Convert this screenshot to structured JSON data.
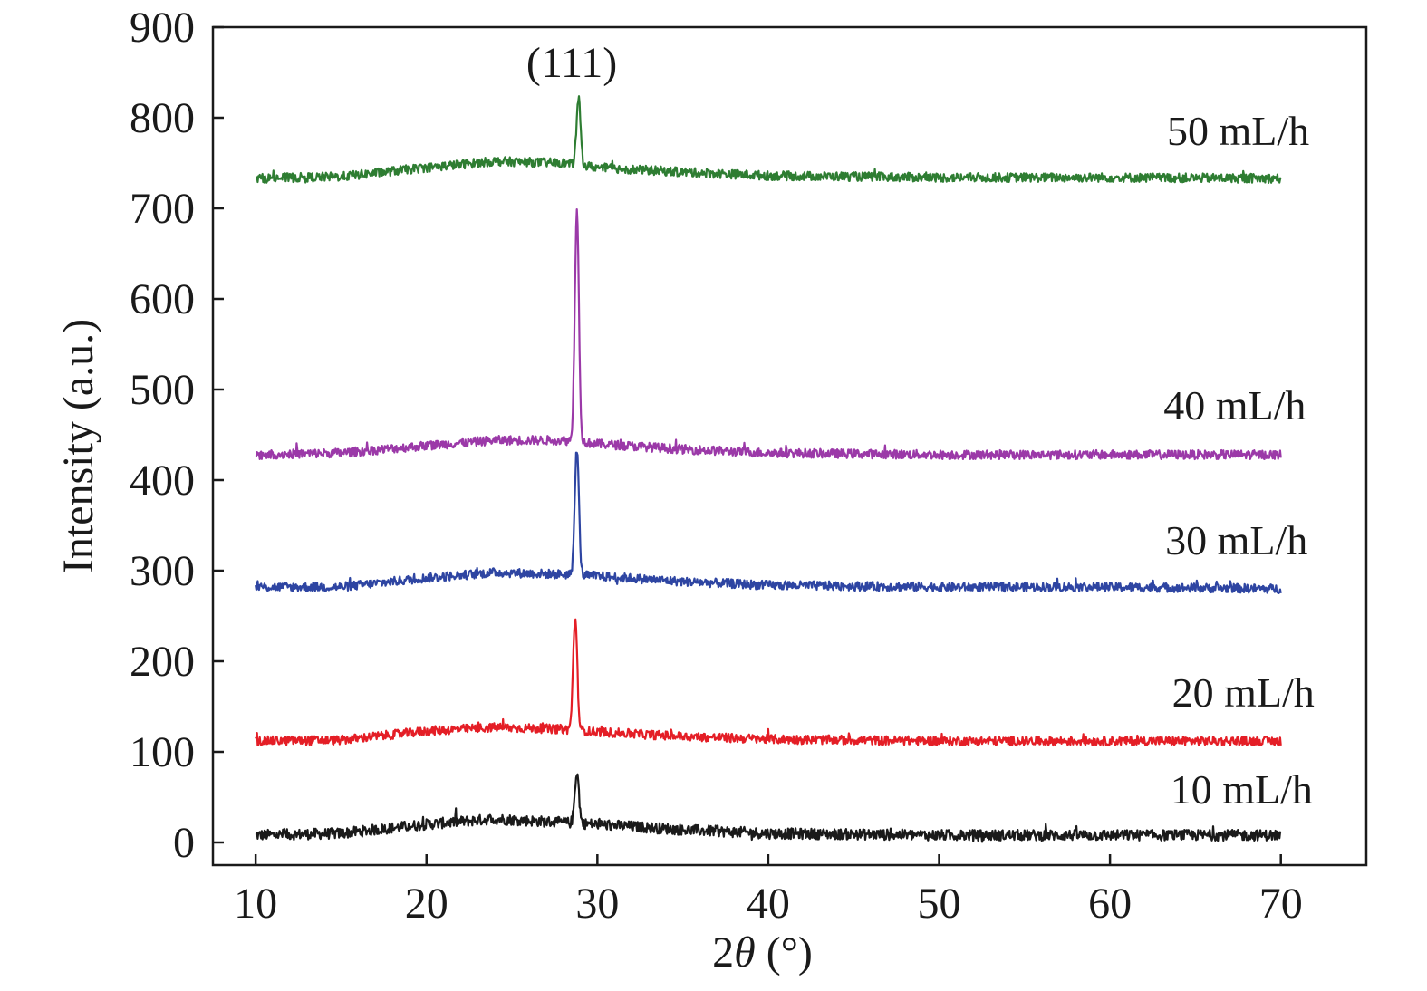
{
  "chart_data": {
    "type": "line",
    "title": "",
    "xlabel_prefix": "2",
    "xlabel_symbol": "θ",
    "xlabel_suffix": " (°)",
    "ylabel": "Intensity (a.u.)",
    "xlim": [
      7.5,
      75
    ],
    "ylim": [
      -25,
      900
    ],
    "xticks": [
      10,
      20,
      30,
      40,
      50,
      60,
      70
    ],
    "yticks": [
      0,
      100,
      200,
      300,
      400,
      500,
      600,
      700,
      800,
      900
    ],
    "grid": false,
    "annotations": [
      {
        "text": "(111)",
        "x": 28.5,
        "y": 845
      }
    ],
    "series": [
      {
        "name": "10 mL/h",
        "color": "#1a1a1a",
        "x_range": [
          10,
          70
        ],
        "baseline": [
          [
            10,
            8
          ],
          [
            15,
            10
          ],
          [
            20,
            20
          ],
          [
            24,
            26
          ],
          [
            28,
            22
          ],
          [
            30,
            20
          ],
          [
            35,
            14
          ],
          [
            40,
            10
          ],
          [
            50,
            8
          ],
          [
            60,
            8
          ],
          [
            70,
            8
          ]
        ],
        "peak": {
          "x": 28.8,
          "height": 78
        },
        "noise": 6
      },
      {
        "name": "20 mL/h",
        "color": "#e41e26",
        "x_range": [
          10,
          70
        ],
        "baseline": [
          [
            10,
            112
          ],
          [
            15,
            113
          ],
          [
            20,
            123
          ],
          [
            24,
            127
          ],
          [
            28,
            125
          ],
          [
            30,
            122
          ],
          [
            35,
            117
          ],
          [
            40,
            114
          ],
          [
            50,
            112
          ],
          [
            60,
            112
          ],
          [
            70,
            112
          ]
        ],
        "peak": {
          "x": 28.7,
          "height": 248
        },
        "noise": 5
      },
      {
        "name": "30 mL/h",
        "color": "#2e45a2",
        "x_range": [
          10,
          70
        ],
        "baseline": [
          [
            10,
            282
          ],
          [
            15,
            282
          ],
          [
            20,
            292
          ],
          [
            24,
            298
          ],
          [
            28,
            296
          ],
          [
            30,
            294
          ],
          [
            35,
            288
          ],
          [
            40,
            284
          ],
          [
            50,
            282
          ],
          [
            60,
            282
          ],
          [
            70,
            280
          ]
        ],
        "peak": {
          "x": 28.8,
          "height": 435
        },
        "noise": 5
      },
      {
        "name": "40 mL/h",
        "color": "#9b39a8",
        "x_range": [
          10,
          70
        ],
        "baseline": [
          [
            10,
            428
          ],
          [
            15,
            430
          ],
          [
            20,
            438
          ],
          [
            24,
            444
          ],
          [
            28,
            444
          ],
          [
            30,
            440
          ],
          [
            35,
            434
          ],
          [
            40,
            430
          ],
          [
            50,
            428
          ],
          [
            60,
            428
          ],
          [
            70,
            428
          ]
        ],
        "peak": {
          "x": 28.8,
          "height": 698
        },
        "noise": 5
      },
      {
        "name": "50 mL/h",
        "color": "#2e7d32",
        "x_range": [
          10,
          70
        ],
        "baseline": [
          [
            10,
            733
          ],
          [
            15,
            735
          ],
          [
            20,
            745
          ],
          [
            24,
            752
          ],
          [
            28,
            750
          ],
          [
            30,
            745
          ],
          [
            35,
            740
          ],
          [
            40,
            736
          ],
          [
            50,
            734
          ],
          [
            60,
            734
          ],
          [
            70,
            733
          ]
        ],
        "peak": {
          "x": 28.9,
          "height": 820
        },
        "noise": 5
      }
    ],
    "series_labels": [
      {
        "text": "50 mL/h",
        "x": 67.5,
        "y": 770
      },
      {
        "text": "40 mL/h",
        "x": 67.3,
        "y": 467
      },
      {
        "text": "30 mL/h",
        "x": 67.4,
        "y": 318
      },
      {
        "text": "20 mL/h",
        "x": 67.8,
        "y": 150
      },
      {
        "text": "10 mL/h",
        "x": 67.7,
        "y": 43
      }
    ]
  }
}
